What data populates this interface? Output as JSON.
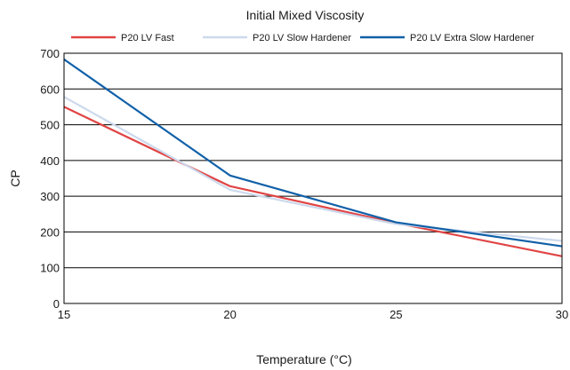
{
  "chart_data": {
    "type": "line",
    "title": "Initial Mixed Viscosity",
    "xlabel": "Temperature (°C)",
    "ylabel": "CP",
    "x": [
      15,
      20,
      25,
      30
    ],
    "xticks": [
      "15",
      "20",
      "25",
      "30"
    ],
    "yticks": [
      "0",
      "100",
      "200",
      "300",
      "400",
      "500",
      "600",
      "700"
    ],
    "xlim": [
      15,
      30
    ],
    "ylim": [
      0,
      700
    ],
    "grid": "horizontal",
    "legend_position": "top",
    "series": [
      {
        "name": "P20 LV Fast",
        "color": "#e04444",
        "values": [
          550,
          328,
          225,
          132
        ]
      },
      {
        "name": "P20 LV Slow Hardener",
        "color": "#ccd9ec",
        "values": [
          578,
          318,
          222,
          175
        ]
      },
      {
        "name": "P20 LV Extra Slow Hardener",
        "color": "#1060a8",
        "values": [
          683,
          358,
          227,
          160
        ]
      }
    ]
  }
}
